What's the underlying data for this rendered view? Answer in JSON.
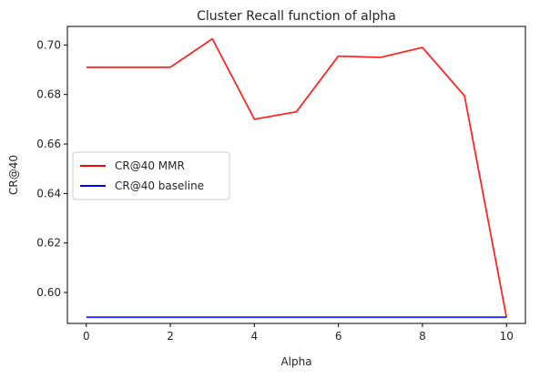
{
  "chart_data": {
    "type": "line",
    "title": "Cluster Recall function of alpha",
    "xlabel": "Alpha",
    "ylabel": "CR@40",
    "xlim": [
      -0.45,
      10.45
    ],
    "ylim": [
      0.5875,
      0.7075
    ],
    "xticks": [
      0,
      2,
      4,
      6,
      8,
      10
    ],
    "xtick_labels": [
      "0",
      "2",
      "4",
      "6",
      "8",
      "10"
    ],
    "yticks": [
      0.6,
      0.62,
      0.64,
      0.66,
      0.68,
      0.7
    ],
    "ytick_labels": [
      "0.60",
      "0.62",
      "0.64",
      "0.66",
      "0.68",
      "0.70"
    ],
    "grid": false,
    "legend_position": "center-left",
    "series": [
      {
        "name": "CR@40 MMR",
        "color": "#ff0000",
        "x": [
          0,
          1,
          2,
          3,
          4,
          5,
          6,
          7,
          8,
          9,
          10
        ],
        "y": [
          0.691,
          0.691,
          0.691,
          0.7025,
          0.67,
          0.673,
          0.6955,
          0.695,
          0.699,
          0.6795,
          0.59
        ]
      },
      {
        "name": "CR@40 baseline",
        "color": "#0000ff",
        "x": [
          0,
          1,
          2,
          3,
          4,
          5,
          6,
          7,
          8,
          9,
          10
        ],
        "y": [
          0.59,
          0.59,
          0.59,
          0.59,
          0.59,
          0.59,
          0.59,
          0.59,
          0.59,
          0.59,
          0.59
        ]
      }
    ]
  }
}
